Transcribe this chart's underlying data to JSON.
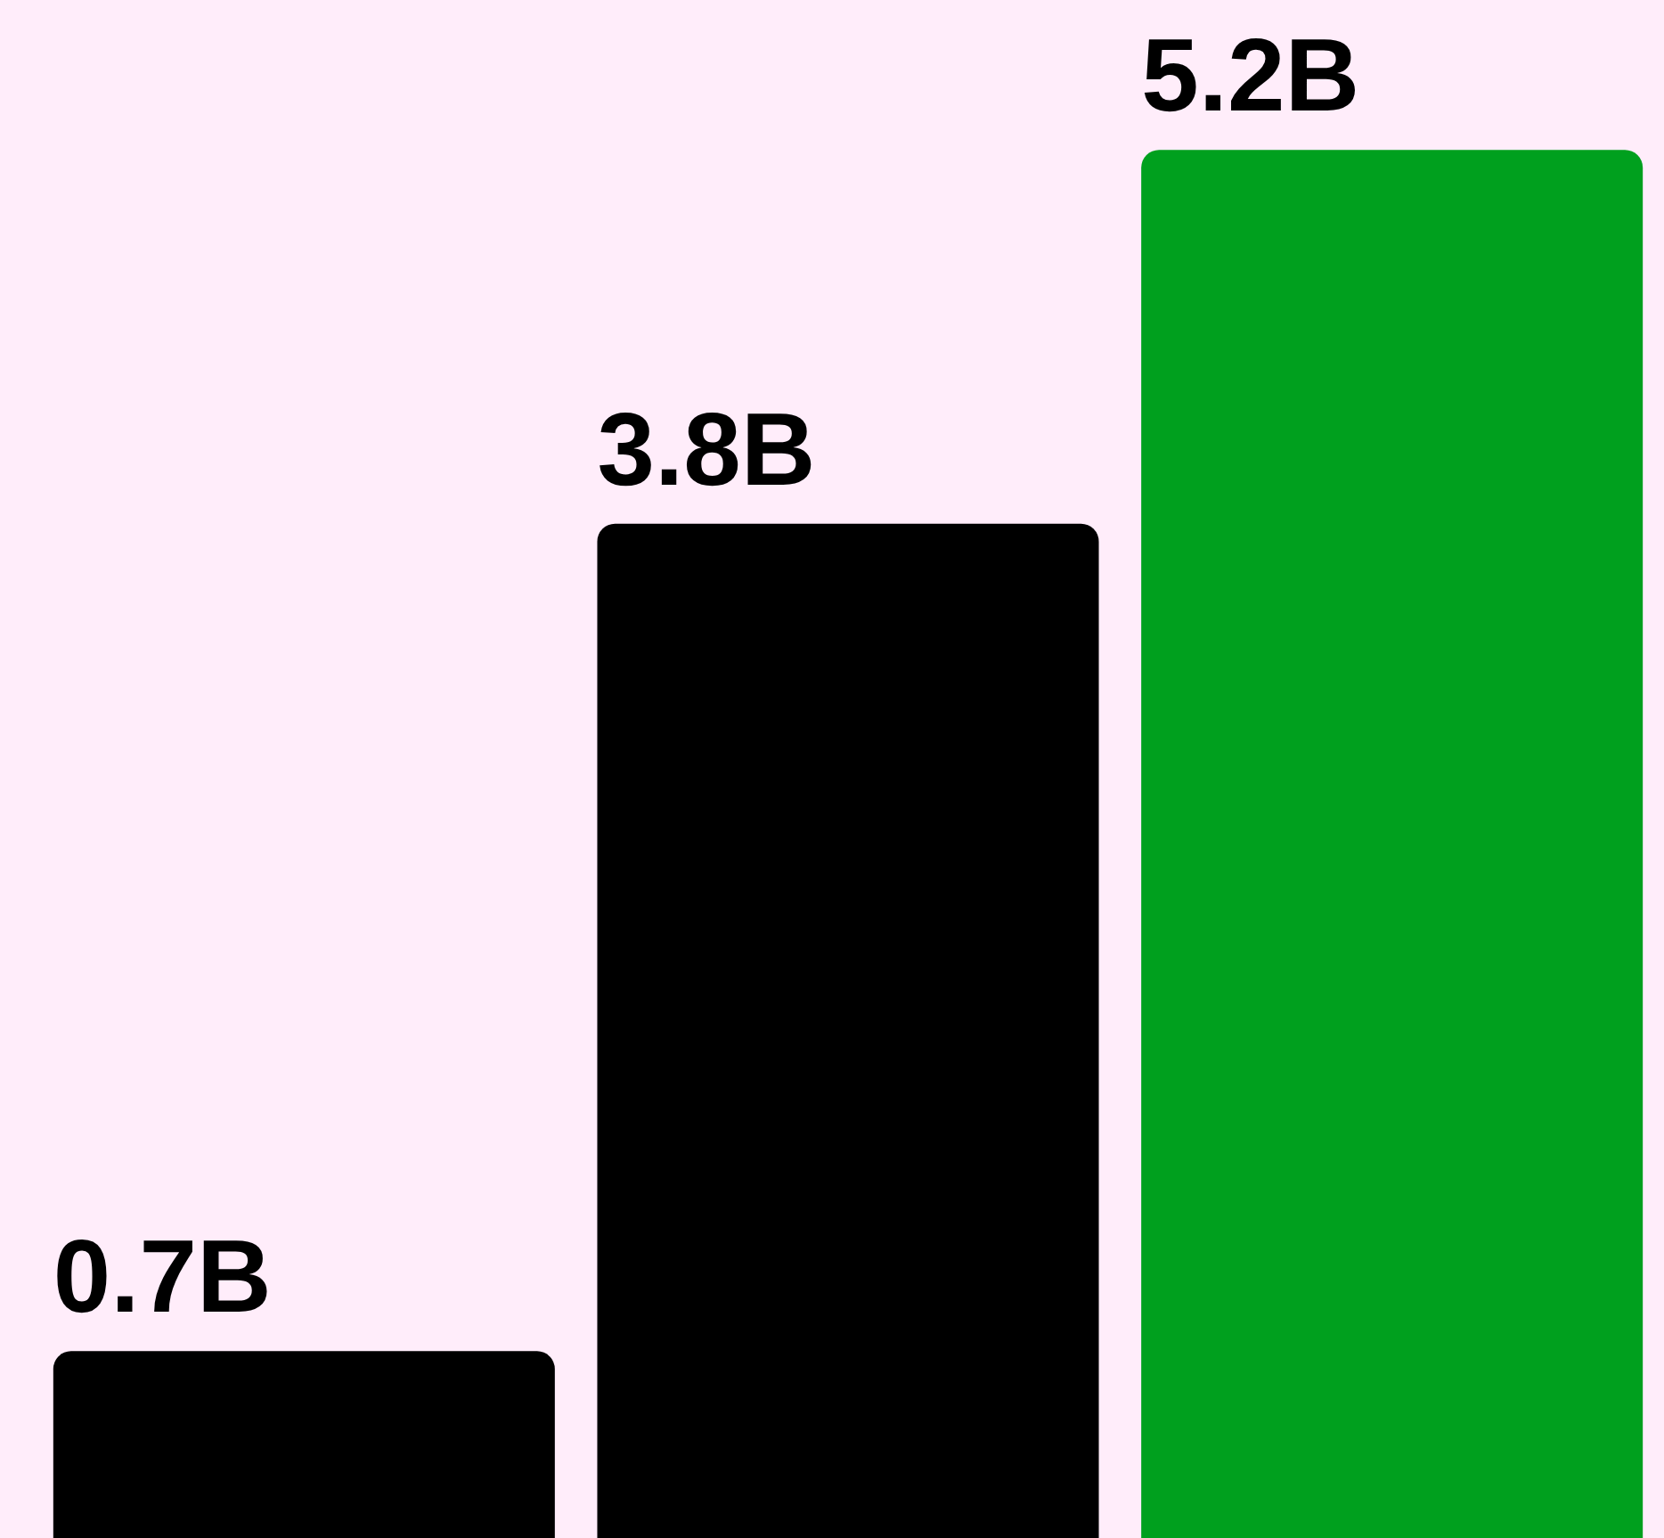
{
  "chart_data": {
    "type": "bar",
    "relative": false,
    "categories": [
      null,
      null,
      null
    ],
    "values": [
      0.7,
      3.8,
      5.2
    ],
    "colors": [
      "#000000",
      "#000000",
      "#00a01e"
    ],
    "value_labels": [
      "0.7B",
      "3.8B",
      "5.2B"
    ],
    "tick_labels": false,
    "legend": false
  }
}
